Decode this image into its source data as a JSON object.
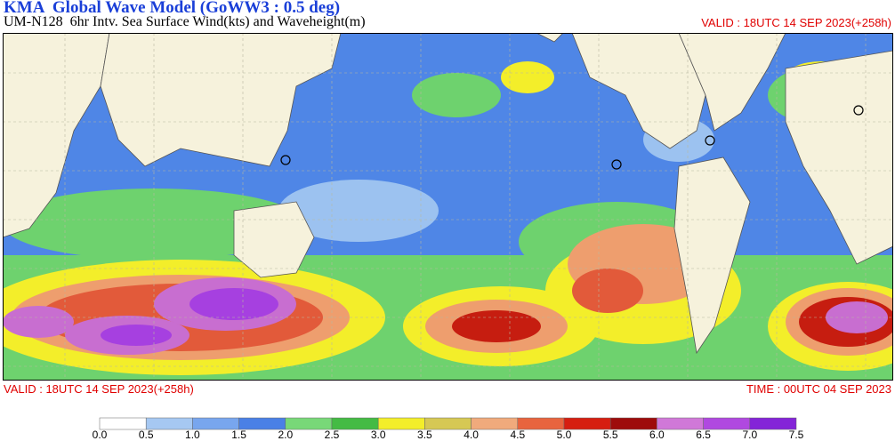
{
  "header": {
    "title": "KMA  Global Wave Model (GoWW3 : 0.5 deg)",
    "subtitle": "UM-N128  6hr Intv. Sea Surface Wind(kts) and Waveheight(m)",
    "valid": "VALID : 18UTC 14 SEP 2023(+258h)"
  },
  "footer": {
    "valid": "VALID : 18UTC 14 SEP 2023(+258h)",
    "time": "TIME : 00UTC 04 SEP 2023"
  },
  "colorbar": {
    "labels": [
      "0.0",
      "0.5",
      "1.0",
      "1.5",
      "2.0",
      "2.5",
      "3.0",
      "3.5",
      "4.0",
      "4.5",
      "5.0",
      "5.5",
      "6.0",
      "6.5",
      "7.0",
      "7.5"
    ]
  }
}
